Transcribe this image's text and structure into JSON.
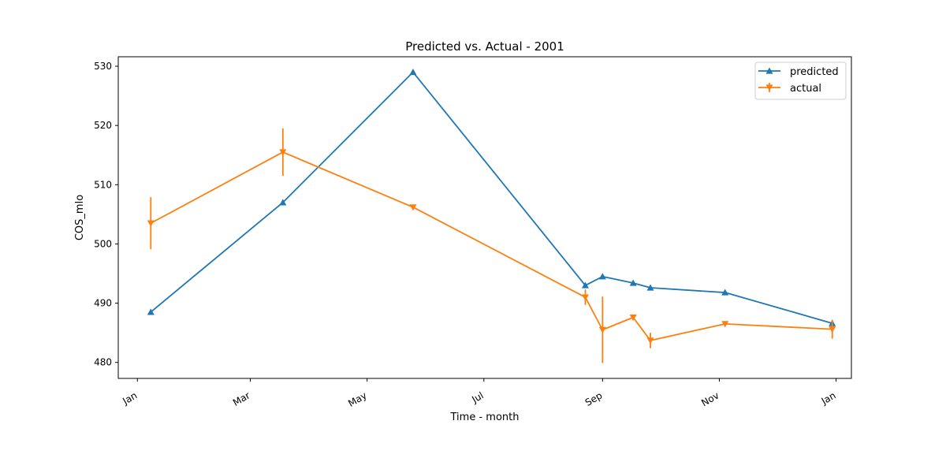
{
  "chart_data": {
    "type": "line",
    "title": "Predicted vs. Actual - 2001",
    "xlabel": "Time - month",
    "ylabel": "COS_mlo",
    "x_ticks": [
      {
        "label": "Jan",
        "date": "2001-01-01"
      },
      {
        "label": "Mar",
        "date": "2001-03-01"
      },
      {
        "label": "May",
        "date": "2001-05-01"
      },
      {
        "label": "Jul",
        "date": "2001-07-01"
      },
      {
        "label": "Sep",
        "date": "2001-09-01"
      },
      {
        "label": "Nov",
        "date": "2001-11-01"
      },
      {
        "label": "Jan",
        "date": "2002-01-01"
      }
    ],
    "y_ticks": [
      480,
      490,
      500,
      510,
      520,
      530
    ],
    "xlim": [
      "2000-12-22",
      "2002-01-09"
    ],
    "ylim": [
      477.3,
      531.6
    ],
    "grid": false,
    "legend_position": "top-right",
    "series": [
      {
        "name": "predicted",
        "color": "#1f77b4",
        "marker": "triangle-up",
        "points": [
          {
            "x": "2001-01-08",
            "y": 488.5
          },
          {
            "x": "2001-03-18",
            "y": 507.0
          },
          {
            "x": "2001-05-25",
            "y": 529.0
          },
          {
            "x": "2001-08-23",
            "y": 493.0
          },
          {
            "x": "2001-09-01",
            "y": 494.5
          },
          {
            "x": "2001-09-17",
            "y": 493.4
          },
          {
            "x": "2001-09-26",
            "y": 492.6
          },
          {
            "x": "2001-11-04",
            "y": 491.8
          },
          {
            "x": "2001-12-30",
            "y": 486.6
          }
        ]
      },
      {
        "name": "actual",
        "color": "#ff7f0e",
        "marker": "triangle-down",
        "points": [
          {
            "x": "2001-01-08",
            "y": 503.5,
            "err": 4.4
          },
          {
            "x": "2001-03-18",
            "y": 515.5,
            "err": 4.0
          },
          {
            "x": "2001-05-25",
            "y": 506.2,
            "err": 0.3
          },
          {
            "x": "2001-08-23",
            "y": 491.0,
            "err": 1.3
          },
          {
            "x": "2001-09-01",
            "y": 485.5,
            "err": 5.6
          },
          {
            "x": "2001-09-17",
            "y": 487.6,
            "err": 0.5
          },
          {
            "x": "2001-09-26",
            "y": 483.7,
            "err": 1.3
          },
          {
            "x": "2001-11-04",
            "y": 486.5,
            "err": 0.3
          },
          {
            "x": "2001-12-30",
            "y": 485.6,
            "err": 1.6
          }
        ]
      }
    ]
  }
}
